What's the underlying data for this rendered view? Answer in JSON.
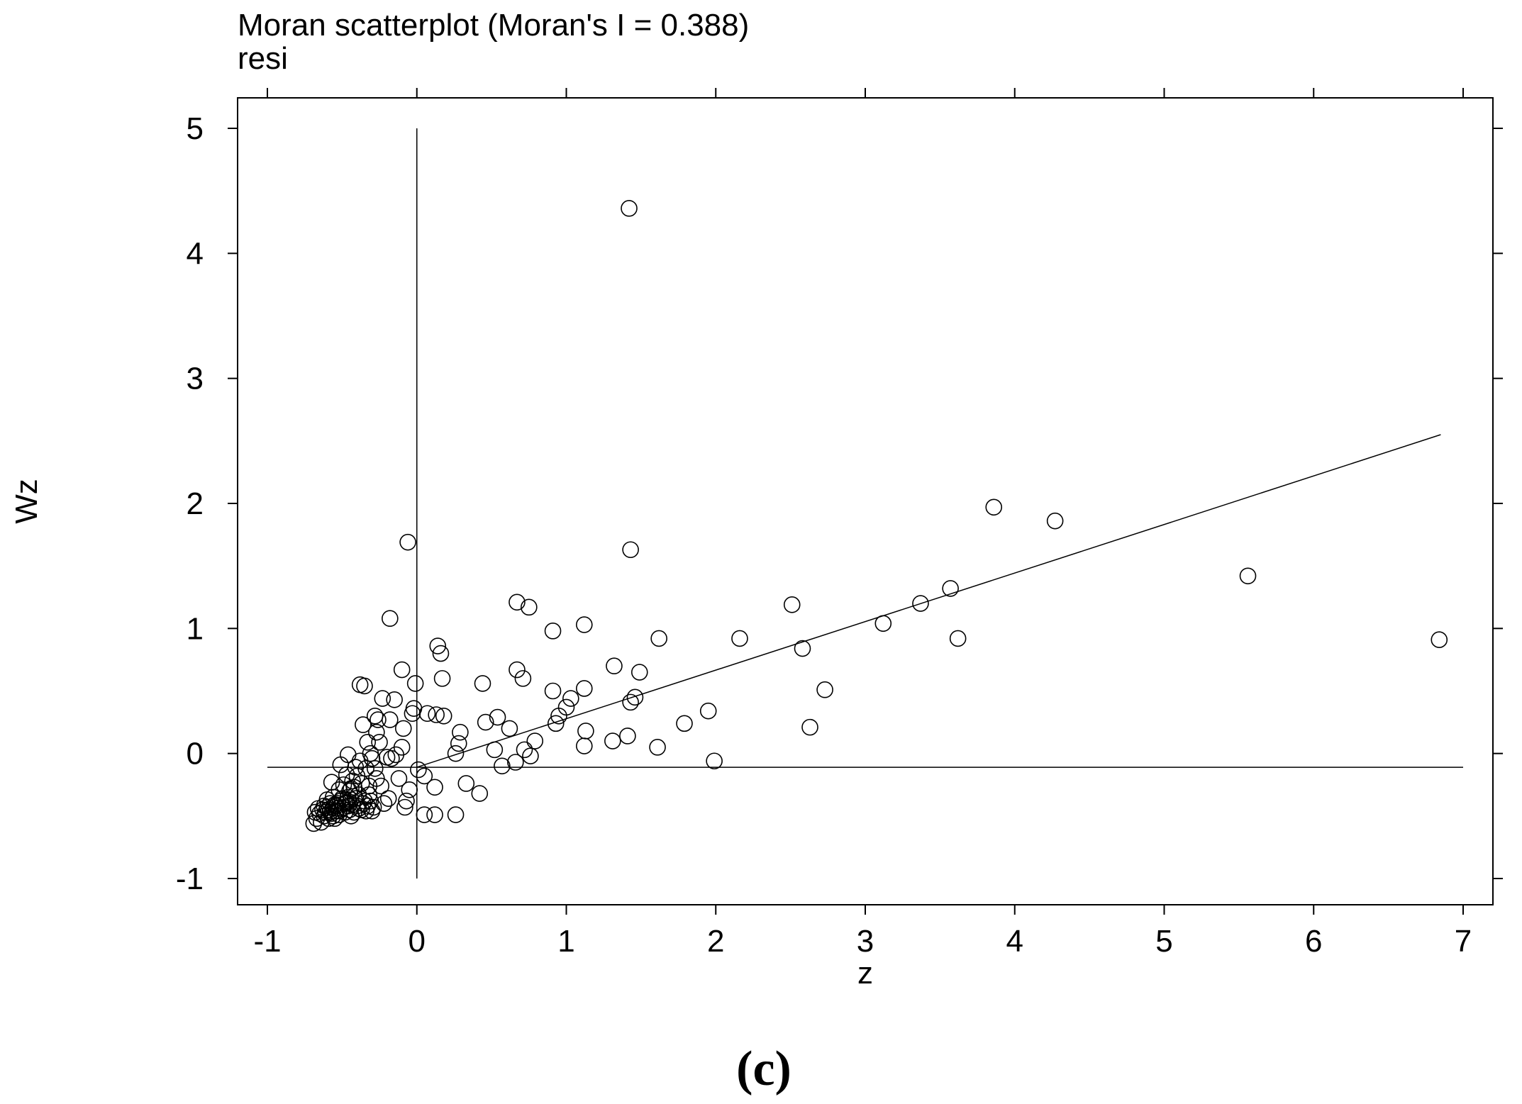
{
  "chart_data": {
    "type": "scatter",
    "title": "Moran scatterplot (Moran's I = 0.388)",
    "subtitle": "resi",
    "xlabel": "z",
    "ylabel": "Wz",
    "xlim": [
      -1.2,
      7.2
    ],
    "ylim": [
      -1.2,
      5.25
    ],
    "x_ticks": [
      -1,
      0,
      1,
      2,
      3,
      4,
      5,
      6,
      7
    ],
    "y_ticks": [
      -1,
      0,
      1,
      2,
      3,
      4,
      5
    ],
    "grid": false,
    "reference_lines": {
      "vertical_x": 0,
      "horizontal_y": -0.11,
      "vertical_y_range": [
        -1,
        5
      ],
      "horizontal_x_range": [
        -1,
        7
      ]
    },
    "regression_line": {
      "x": [
        0,
        6.85
      ],
      "y": [
        -0.11,
        2.55
      ]
    },
    "points": [
      {
        "x": 1.42,
        "y": 4.36
      },
      {
        "x": -0.06,
        "y": 1.69
      },
      {
        "x": 1.43,
        "y": 1.63
      },
      {
        "x": 3.86,
        "y": 1.97
      },
      {
        "x": 4.27,
        "y": 1.86
      },
      {
        "x": 5.56,
        "y": 1.42
      },
      {
        "x": 6.84,
        "y": 0.91
      },
      {
        "x": 3.57,
        "y": 1.32
      },
      {
        "x": 3.37,
        "y": 1.2
      },
      {
        "x": 3.12,
        "y": 1.04
      },
      {
        "x": 3.62,
        "y": 0.92
      },
      {
        "x": 2.51,
        "y": 1.19
      },
      {
        "x": 2.58,
        "y": 0.84
      },
      {
        "x": 2.16,
        "y": 0.92
      },
      {
        "x": 2.73,
        "y": 0.51
      },
      {
        "x": 2.63,
        "y": 0.21
      },
      {
        "x": 1.95,
        "y": 0.34
      },
      {
        "x": 1.99,
        "y": -0.06
      },
      {
        "x": 1.79,
        "y": 0.24
      },
      {
        "x": 1.62,
        "y": 0.92
      },
      {
        "x": 1.61,
        "y": 0.05
      },
      {
        "x": 1.49,
        "y": 0.65
      },
      {
        "x": 1.46,
        "y": 0.45
      },
      {
        "x": 1.43,
        "y": 0.41
      },
      {
        "x": 1.41,
        "y": 0.14
      },
      {
        "x": 1.32,
        "y": 0.7
      },
      {
        "x": 1.31,
        "y": 0.1
      },
      {
        "x": 1.13,
        "y": 0.18
      },
      {
        "x": 1.12,
        "y": 0.06
      },
      {
        "x": 1.12,
        "y": 1.03
      },
      {
        "x": 1.12,
        "y": 0.52
      },
      {
        "x": 1.03,
        "y": 0.44
      },
      {
        "x": 1.0,
        "y": 0.37
      },
      {
        "x": 0.95,
        "y": 0.3
      },
      {
        "x": 0.93,
        "y": 0.24
      },
      {
        "x": 0.91,
        "y": 0.5
      },
      {
        "x": 0.91,
        "y": 0.98
      },
      {
        "x": 0.79,
        "y": 0.1
      },
      {
        "x": 0.76,
        "y": -0.02
      },
      {
        "x": 0.75,
        "y": 1.17
      },
      {
        "x": 0.72,
        "y": 0.03
      },
      {
        "x": 0.71,
        "y": 0.6
      },
      {
        "x": 0.67,
        "y": 1.21
      },
      {
        "x": 0.67,
        "y": 0.67
      },
      {
        "x": 0.66,
        "y": -0.07
      },
      {
        "x": 0.62,
        "y": 0.2
      },
      {
        "x": 0.57,
        "y": -0.1
      },
      {
        "x": 0.54,
        "y": 0.29
      },
      {
        "x": 0.52,
        "y": 0.03
      },
      {
        "x": 0.46,
        "y": 0.25
      },
      {
        "x": 0.44,
        "y": 0.56
      },
      {
        "x": 0.42,
        "y": -0.32
      },
      {
        "x": 0.33,
        "y": -0.24
      },
      {
        "x": 0.29,
        "y": 0.17
      },
      {
        "x": 0.28,
        "y": 0.08
      },
      {
        "x": 0.26,
        "y": 0.0
      },
      {
        "x": 0.26,
        "y": -0.49
      },
      {
        "x": 0.18,
        "y": 0.3
      },
      {
        "x": 0.17,
        "y": 0.6
      },
      {
        "x": 0.16,
        "y": 0.8
      },
      {
        "x": 0.14,
        "y": 0.86
      },
      {
        "x": 0.13,
        "y": 0.31
      },
      {
        "x": 0.12,
        "y": -0.27
      },
      {
        "x": 0.12,
        "y": -0.49
      },
      {
        "x": 0.07,
        "y": 0.32
      },
      {
        "x": 0.05,
        "y": -0.18
      },
      {
        "x": 0.05,
        "y": -0.49
      },
      {
        "x": 0.01,
        "y": -0.13
      },
      {
        "x": -0.01,
        "y": 0.56
      },
      {
        "x": -0.02,
        "y": 0.36
      },
      {
        "x": -0.03,
        "y": 0.32
      },
      {
        "x": -0.05,
        "y": -0.29
      },
      {
        "x": -0.07,
        "y": -0.38
      },
      {
        "x": -0.08,
        "y": -0.43
      },
      {
        "x": -0.09,
        "y": 0.2
      },
      {
        "x": -0.1,
        "y": 0.67
      },
      {
        "x": -0.1,
        "y": 0.05
      },
      {
        "x": -0.12,
        "y": -0.2
      },
      {
        "x": -0.14,
        "y": -0.01
      },
      {
        "x": -0.15,
        "y": 0.43
      },
      {
        "x": -0.17,
        "y": -0.04
      },
      {
        "x": -0.18,
        "y": 0.27
      },
      {
        "x": -0.18,
        "y": 1.08
      },
      {
        "x": -0.19,
        "y": -0.36
      },
      {
        "x": -0.2,
        "y": -0.03
      },
      {
        "x": -0.22,
        "y": -0.4
      },
      {
        "x": -0.23,
        "y": 0.44
      },
      {
        "x": -0.24,
        "y": -0.26
      },
      {
        "x": -0.25,
        "y": 0.09
      },
      {
        "x": -0.26,
        "y": 0.27
      },
      {
        "x": -0.27,
        "y": 0.17
      },
      {
        "x": -0.27,
        "y": -0.2
      },
      {
        "x": -0.28,
        "y": -0.12
      },
      {
        "x": -0.28,
        "y": 0.3
      },
      {
        "x": -0.3,
        "y": -0.04
      },
      {
        "x": -0.3,
        "y": -0.46
      },
      {
        "x": -0.31,
        "y": 0.0
      },
      {
        "x": -0.32,
        "y": -0.26
      },
      {
        "x": -0.32,
        "y": -0.33
      },
      {
        "x": -0.33,
        "y": 0.09
      },
      {
        "x": -0.33,
        "y": -0.42
      },
      {
        "x": -0.34,
        "y": -0.12
      },
      {
        "x": -0.35,
        "y": -0.38
      },
      {
        "x": -0.35,
        "y": 0.54
      },
      {
        "x": -0.36,
        "y": 0.23
      },
      {
        "x": -0.37,
        "y": -0.24
      },
      {
        "x": -0.37,
        "y": -0.45
      },
      {
        "x": -0.38,
        "y": 0.55
      },
      {
        "x": -0.38,
        "y": -0.06
      },
      {
        "x": -0.39,
        "y": -0.33
      },
      {
        "x": -0.4,
        "y": -0.18
      },
      {
        "x": -0.4,
        "y": -0.42
      },
      {
        "x": -0.41,
        "y": -0.11
      },
      {
        "x": -0.42,
        "y": -0.27
      },
      {
        "x": -0.42,
        "y": -0.47
      },
      {
        "x": -0.43,
        "y": -0.22
      },
      {
        "x": -0.44,
        "y": -0.37
      },
      {
        "x": -0.44,
        "y": -0.5
      },
      {
        "x": -0.45,
        "y": -0.3
      },
      {
        "x": -0.46,
        "y": -0.01
      },
      {
        "x": -0.46,
        "y": -0.42
      },
      {
        "x": -0.47,
        "y": -0.17
      },
      {
        "x": -0.48,
        "y": -0.47
      },
      {
        "x": -0.49,
        "y": -0.25
      },
      {
        "x": -0.5,
        "y": -0.36
      },
      {
        "x": -0.5,
        "y": -0.44
      },
      {
        "x": -0.51,
        "y": -0.09
      },
      {
        "x": -0.52,
        "y": -0.29
      },
      {
        "x": -0.52,
        "y": -0.49
      },
      {
        "x": -0.53,
        "y": -0.4
      },
      {
        "x": -0.54,
        "y": -0.46
      },
      {
        "x": -0.55,
        "y": -0.52
      },
      {
        "x": -0.56,
        "y": -0.35
      },
      {
        "x": -0.56,
        "y": -0.43
      },
      {
        "x": -0.57,
        "y": -0.23
      },
      {
        "x": -0.57,
        "y": -0.48
      },
      {
        "x": -0.58,
        "y": -0.4
      },
      {
        "x": -0.59,
        "y": -0.45
      },
      {
        "x": -0.59,
        "y": -0.52
      },
      {
        "x": -0.6,
        "y": -0.37
      },
      {
        "x": -0.61,
        "y": -0.47
      },
      {
        "x": -0.62,
        "y": -0.42
      },
      {
        "x": -0.62,
        "y": -0.5
      },
      {
        "x": -0.63,
        "y": -0.45
      },
      {
        "x": -0.64,
        "y": -0.55
      },
      {
        "x": -0.65,
        "y": -0.48
      },
      {
        "x": -0.66,
        "y": -0.44
      },
      {
        "x": -0.67,
        "y": -0.52
      },
      {
        "x": -0.68,
        "y": -0.47
      },
      {
        "x": -0.69,
        "y": -0.56
      },
      {
        "x": -0.55,
        "y": -0.41
      },
      {
        "x": -0.53,
        "y": -0.44
      },
      {
        "x": -0.51,
        "y": -0.38
      },
      {
        "x": -0.49,
        "y": -0.43
      },
      {
        "x": -0.47,
        "y": -0.39
      },
      {
        "x": -0.45,
        "y": -0.45
      },
      {
        "x": -0.43,
        "y": -0.41
      },
      {
        "x": -0.41,
        "y": -0.36
      },
      {
        "x": -0.39,
        "y": -0.44
      },
      {
        "x": -0.36,
        "y": -0.4
      },
      {
        "x": -0.34,
        "y": -0.46
      },
      {
        "x": -0.31,
        "y": -0.38
      },
      {
        "x": -0.29,
        "y": -0.43
      },
      {
        "x": -0.6,
        "y": -0.43
      },
      {
        "x": -0.58,
        "y": -0.47
      },
      {
        "x": -0.56,
        "y": -0.5
      },
      {
        "x": -0.54,
        "y": -0.42
      },
      {
        "x": -0.52,
        "y": -0.46
      },
      {
        "x": -0.48,
        "y": -0.4
      },
      {
        "x": -0.46,
        "y": -0.35
      },
      {
        "x": -0.44,
        "y": -0.28
      }
    ]
  },
  "panel_label": "(c)"
}
